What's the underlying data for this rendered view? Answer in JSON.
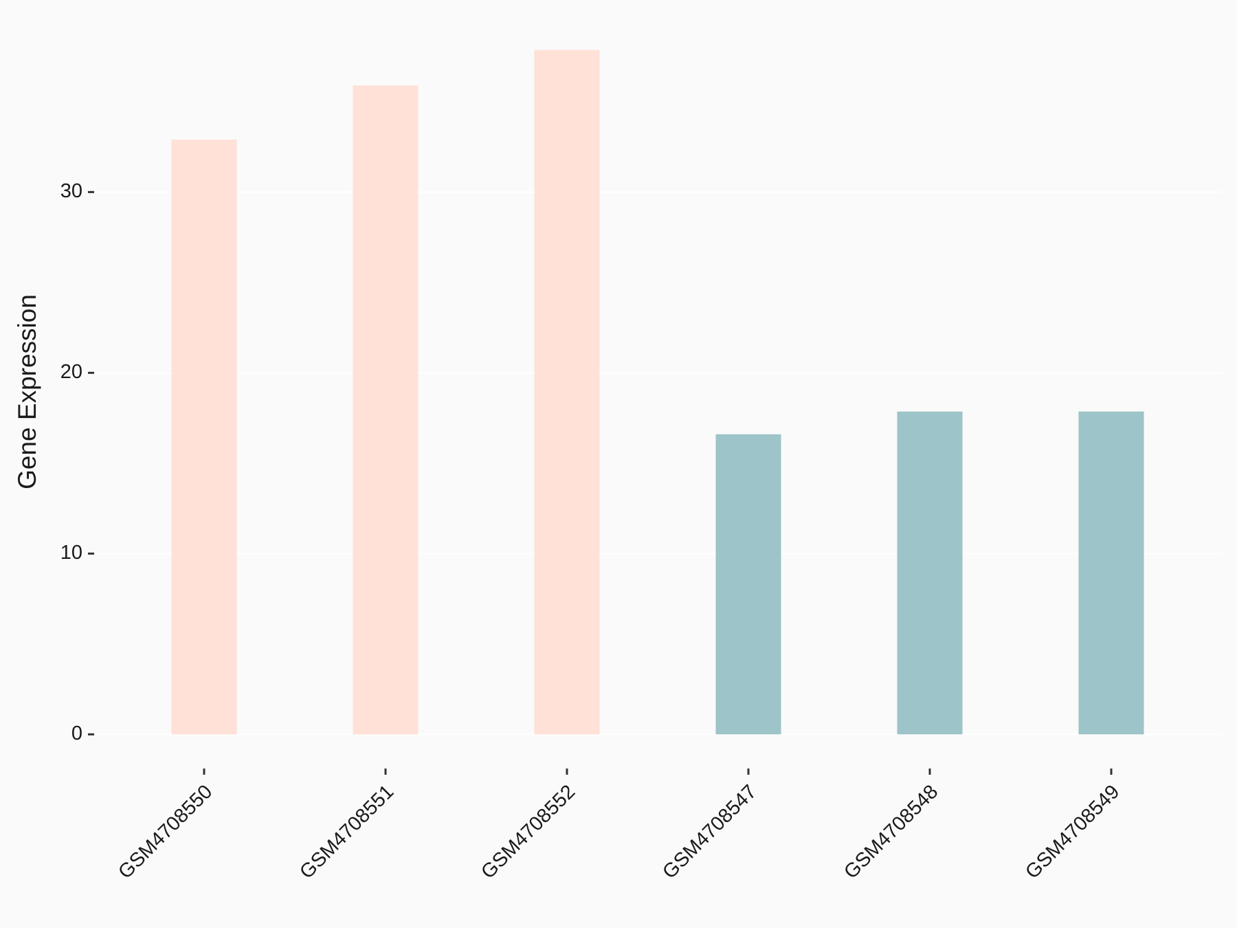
{
  "chart_data": {
    "type": "bar",
    "y_label": "Gene Expression",
    "categories": [
      "GSM4708550",
      "GSM4708551",
      "GSM4708552",
      "GSM4708547",
      "GSM4708548",
      "GSM4708549"
    ],
    "values": [
      32.9,
      35.9,
      37.86,
      16.6,
      17.86,
      17.86
    ],
    "colors": [
      "#ffe1d7",
      "#ffe1d7",
      "#ffe1d7",
      "#9dc4c8",
      "#9dc4c8",
      "#9dc4c8"
    ],
    "ylim": [
      -1.89,
      39.75
    ],
    "yticks": [
      0,
      10,
      20,
      30
    ],
    "grid": true
  }
}
